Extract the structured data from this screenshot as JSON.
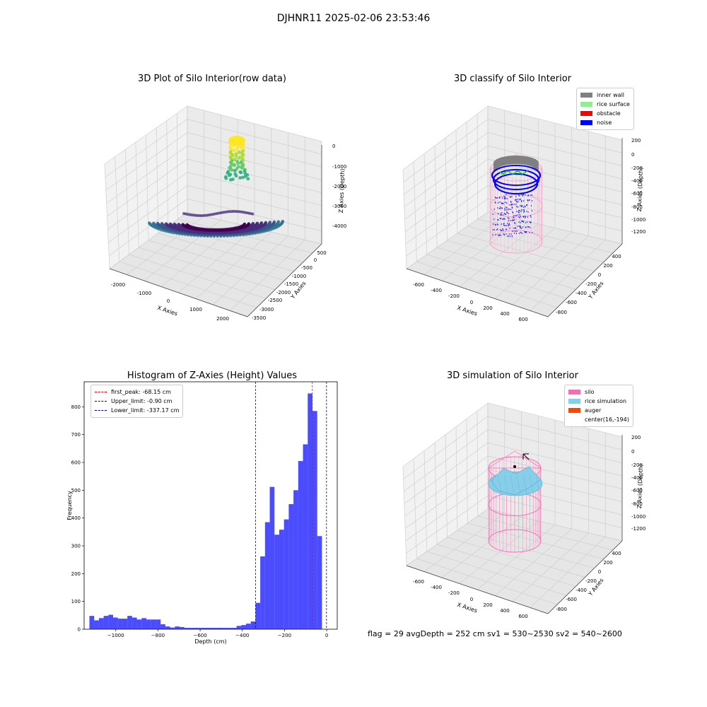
{
  "suptitle": "DJHNR11 2025-02-06 23:53:46",
  "footer": "flag = 29  avgDepth = 252 cm  sv1 = 530~2530  sv2 = 540~2600",
  "chart_data": [
    {
      "type": "scatter",
      "title": "3D Plot of Silo Interior(row data)",
      "xlabel": "X Axies",
      "ylabel": "Y Axies",
      "zlabel": "Z Axies (Depth)",
      "x_ticks": [
        "-2000",
        "-1000",
        "0",
        "1000",
        "2000"
      ],
      "y_ticks": [
        "500",
        "0",
        "-500",
        "-1000",
        "-1500",
        "-2000",
        "-2500",
        "-3000",
        "-3500"
      ],
      "z_ticks": [
        "0",
        "-1000",
        "-2000",
        "-3000",
        "-4000"
      ],
      "colormap": "viridis"
    },
    {
      "type": "scatter",
      "title": "3D classify of Silo Interior",
      "xlabel": "X Axies",
      "ylabel": "Y Axies",
      "zlabel": "Z Axies (Depth)",
      "x_ticks": [
        "-600",
        "-400",
        "-200",
        "0",
        "200",
        "400",
        "600"
      ],
      "y_ticks": [
        "400",
        "200",
        "0",
        "-200",
        "-400",
        "-600",
        "-800"
      ],
      "z_ticks": [
        "200",
        "0",
        "-200",
        "-400",
        "-600",
        "-800",
        "-1000",
        "-1200"
      ],
      "legend": [
        {
          "label": "inner wall",
          "color": "#808080"
        },
        {
          "label": "rice surface",
          "color": "#90ee90"
        },
        {
          "label": "obstacle",
          "color": "#ff0000"
        },
        {
          "label": "noise",
          "color": "#0000ff"
        }
      ]
    },
    {
      "type": "bar",
      "title": "Histogram of Z-Axies (Height) Values",
      "xlabel": "Depth (cm)",
      "ylabel": "Frequency",
      "xlim": [
        -1150,
        50
      ],
      "ylim": [
        0,
        890
      ],
      "x_ticks": [
        -1000,
        -800,
        -600,
        -400,
        -200,
        0
      ],
      "y_ticks": [
        0,
        100,
        200,
        300,
        400,
        500,
        600,
        700,
        800
      ],
      "bin_start": -1125,
      "bin_width": 22.5,
      "values": [
        48,
        32,
        40,
        48,
        52,
        42,
        38,
        38,
        48,
        42,
        35,
        40,
        35,
        35,
        35,
        18,
        10,
        6,
        10,
        8,
        5,
        5,
        5,
        5,
        5,
        5,
        5,
        5,
        5,
        5,
        5,
        12,
        15,
        20,
        28,
        95,
        262,
        385,
        512,
        340,
        358,
        395,
        450,
        500,
        605,
        665,
        848,
        785,
        335
      ],
      "color": "#0000ff",
      "lines": [
        {
          "label": "first_peak: -68.15 cm",
          "value": -68.15,
          "color": "#ff0000"
        },
        {
          "label": "Upper_limit: -0.90 cm",
          "value": -0.9,
          "color": "#0000aa"
        },
        {
          "label": "Lower_limit: -337.17 cm",
          "value": -337.17,
          "color": "#0000aa"
        }
      ]
    },
    {
      "type": "scatter",
      "title": "3D simulation of Silo Interior",
      "xlabel": "X Axies",
      "ylabel": "Y Axies",
      "zlabel": "Z Axies (Depth)",
      "x_ticks": [
        "-600",
        "-400",
        "-200",
        "0",
        "200",
        "400",
        "600"
      ],
      "y_ticks": [
        "400",
        "200",
        "0",
        "-200",
        "-400",
        "-600",
        "-800"
      ],
      "z_ticks": [
        "200",
        "0",
        "-200",
        "-400",
        "-600",
        "-800",
        "-1000",
        "-1200"
      ],
      "legend": [
        {
          "label": "silo",
          "color": "#ff69b4"
        },
        {
          "label": "rice simulation",
          "color": "#87ceeb"
        },
        {
          "label": "auger",
          "color": "#ff4500"
        },
        {
          "label": "center(16,-194)",
          "color": ""
        }
      ]
    }
  ]
}
